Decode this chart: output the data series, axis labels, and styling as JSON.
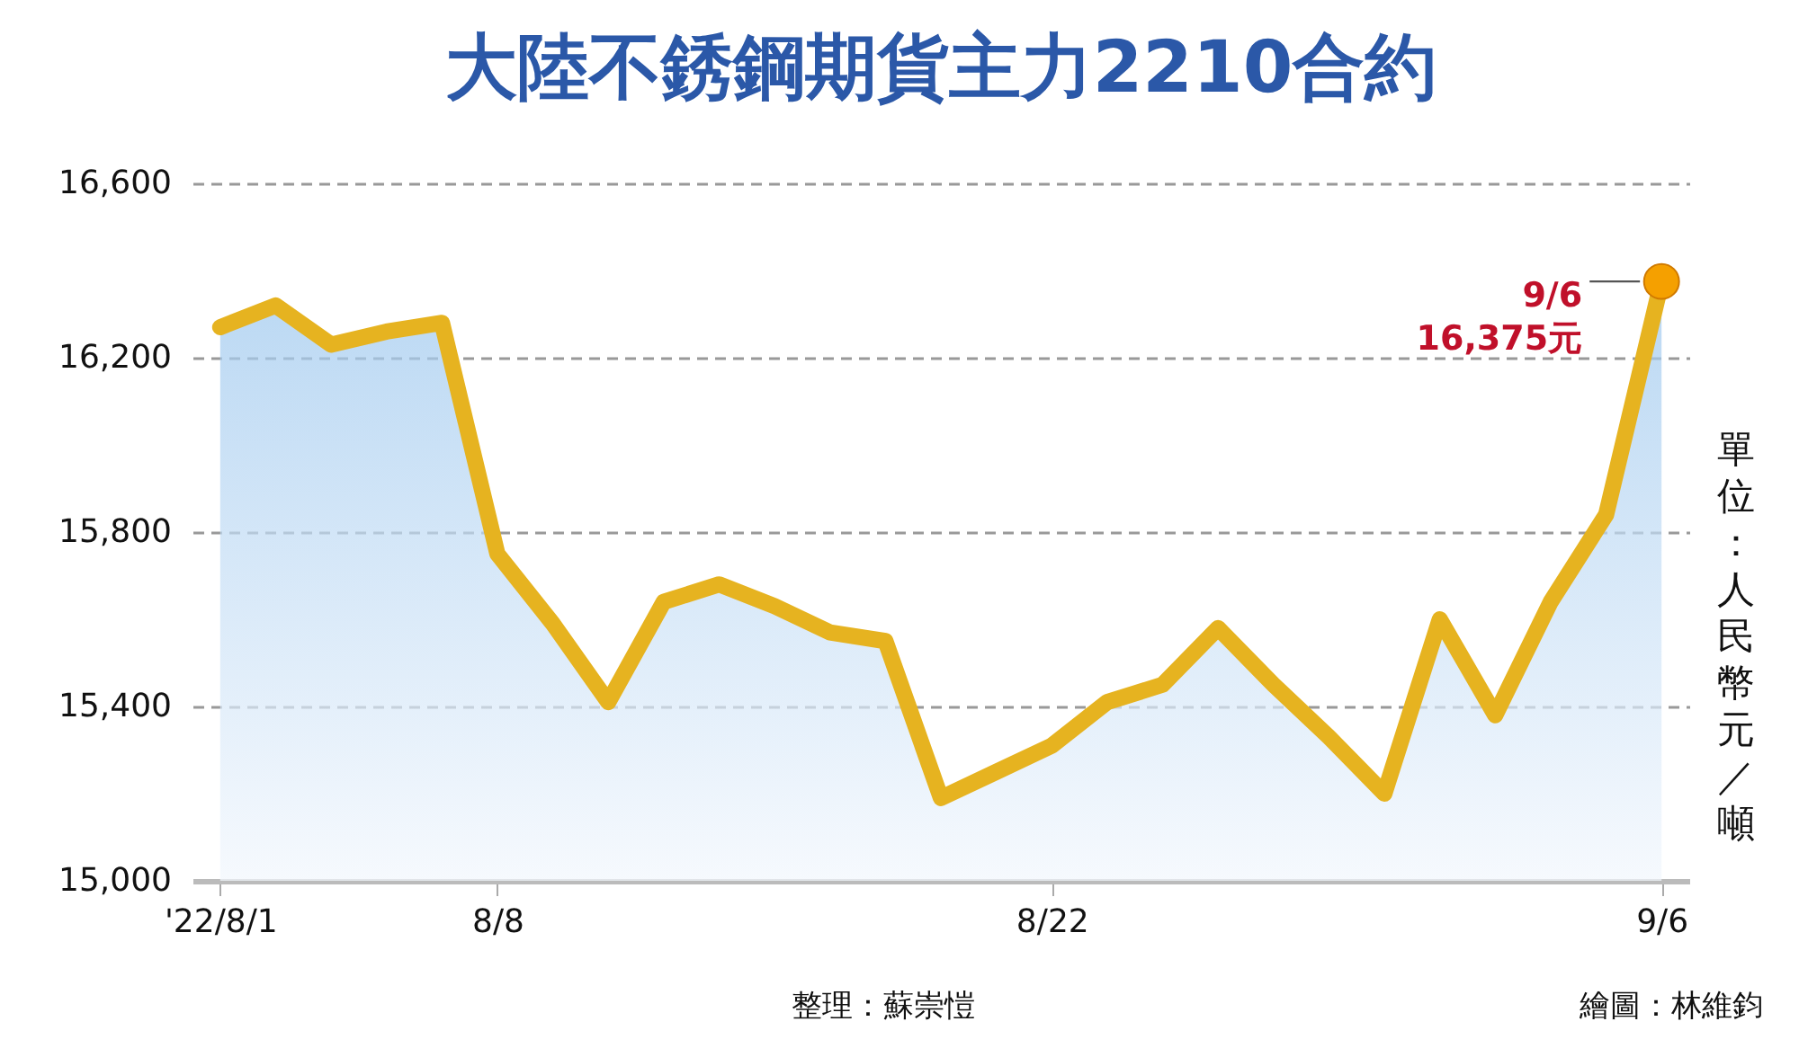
{
  "chart_data": {
    "type": "area",
    "title": "大陸不銹鋼期貨主力2210合約",
    "ylabel": "單位：人民幣元／噸",
    "categories": [
      "'22/8/1",
      null,
      null,
      null,
      null,
      "8/8",
      null,
      null,
      null,
      null,
      null,
      null,
      null,
      null,
      null,
      "8/22",
      null,
      null,
      null,
      null,
      null,
      null,
      null,
      null,
      null,
      null,
      "9/6"
    ],
    "series": [
      {
        "color": "#e6b320",
        "values": [
          16270,
          16320,
          16230,
          16260,
          16280,
          15750,
          15590,
          15410,
          15640,
          15680,
          15630,
          15570,
          15550,
          15190,
          15250,
          15310,
          15410,
          15450,
          15580,
          15450,
          15330,
          15200,
          15600,
          15380,
          15640,
          15840,
          16375
        ]
      },
      {
        "type": "scatter",
        "color": "#f5a000",
        "x": [
          "9/6"
        ],
        "values": [
          16375
        ]
      }
    ],
    "ylim": [
      15000,
      16600
    ],
    "yticks": [
      {
        "value": 15000,
        "label": "15,000"
      },
      {
        "value": 15400,
        "label": "15,400"
      },
      {
        "value": 15800,
        "label": "15,800"
      },
      {
        "value": 16200,
        "label": "16,200"
      },
      {
        "value": 16600,
        "label": "16,600"
      }
    ],
    "grid": "y",
    "annotations": [
      {
        "text": "9/6\n16,375元",
        "x": "9/6",
        "y": 16375
      },
      "整理：蘇崇愷",
      "繪圖：林維鈞"
    ]
  }
}
